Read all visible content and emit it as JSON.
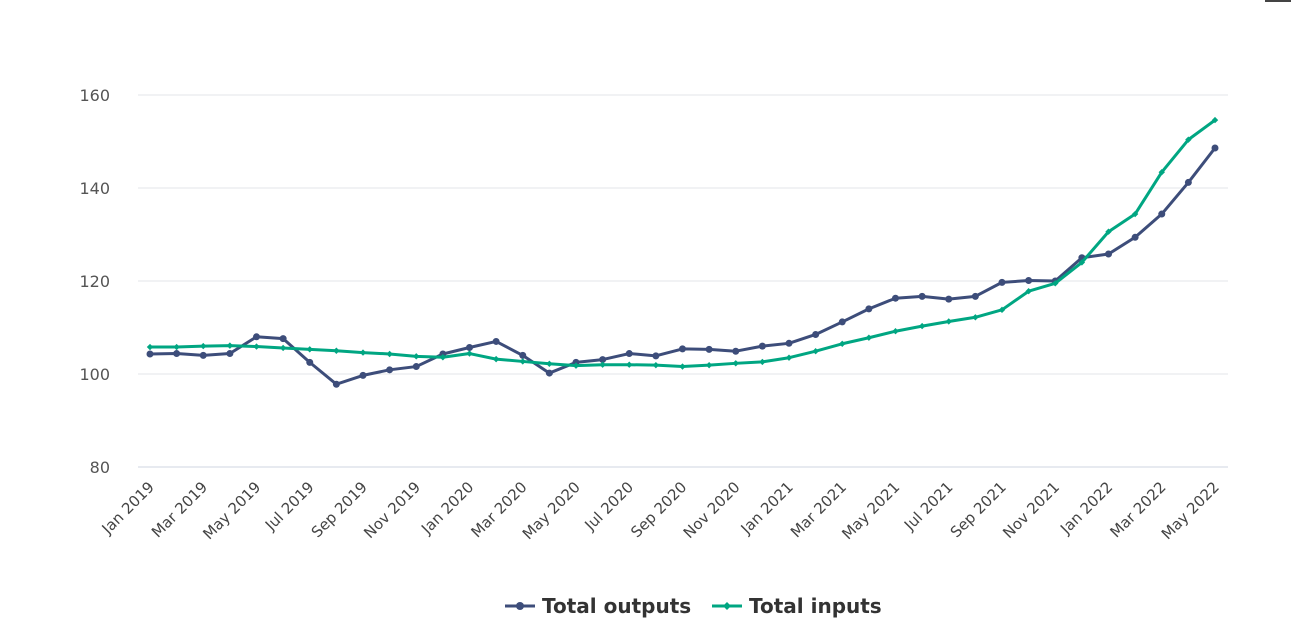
{
  "colors": {
    "outputs": "#3d4d7a",
    "inputs": "#00a682",
    "grid": "#e3e6ea",
    "axis": "#cfd6e0"
  },
  "chart_data": {
    "type": "line",
    "title": "",
    "xlabel": "",
    "ylabel": "",
    "ylim": [
      80,
      160
    ],
    "yticks": [
      80,
      100,
      120,
      140,
      160
    ],
    "grid": true,
    "legend_position": "bottom-center",
    "x": [
      "Jan 2019",
      "Feb 2019",
      "Mar 2019",
      "Apr 2019",
      "May 2019",
      "Jun 2019",
      "Jul 2019",
      "Aug 2019",
      "Sep 2019",
      "Oct 2019",
      "Nov 2019",
      "Dec 2019",
      "Jan 2020",
      "Feb 2020",
      "Mar 2020",
      "Apr 2020",
      "May 2020",
      "Jun 2020",
      "Jul 2020",
      "Aug 2020",
      "Sep 2020",
      "Oct 2020",
      "Nov 2020",
      "Dec 2020",
      "Jan 2021",
      "Feb 2021",
      "Mar 2021",
      "Apr 2021",
      "May 2021",
      "Jun 2021",
      "Jul 2021",
      "Aug 2021",
      "Sep 2021",
      "Oct 2021",
      "Nov 2021",
      "Dec 2021",
      "Jan 2022",
      "Feb 2022",
      "Mar 2022",
      "Apr 2022",
      "May 2022"
    ],
    "x_tick_labels": [
      "Jan 2019",
      "Mar 2019",
      "May 2019",
      "Jul 2019",
      "Sep 2019",
      "Nov 2019",
      "Jan 2020",
      "Mar 2020",
      "May 2020",
      "Jul 2020",
      "Sep 2020",
      "Nov 2020",
      "Jan 2021",
      "Mar 2021",
      "May 2021",
      "Jul 2021",
      "Sep 2021",
      "Nov 2021",
      "Jan 2022",
      "Mar 2022",
      "May 2022"
    ],
    "series": [
      {
        "name": "Total outputs",
        "color": "#3d4d7a",
        "marker": "circle",
        "values": [
          104.3,
          104.4,
          104.0,
          104.4,
          108.0,
          107.6,
          102.5,
          97.8,
          99.7,
          100.9,
          101.6,
          104.3,
          105.7,
          107.0,
          104.0,
          100.2,
          102.5,
          103.1,
          104.4,
          103.9,
          105.4,
          105.3,
          104.9,
          106.0,
          106.6,
          108.5,
          111.2,
          114.0,
          116.3,
          116.7,
          116.1,
          116.7,
          119.7,
          120.1,
          120.0,
          125.0,
          125.8,
          129.4,
          134.4,
          141.2,
          148.6
        ]
      },
      {
        "name": "Total inputs",
        "color": "#00a682",
        "marker": "diamond",
        "values": [
          105.8,
          105.8,
          106.0,
          106.1,
          105.9,
          105.6,
          105.3,
          105.0,
          104.6,
          104.3,
          103.8,
          103.6,
          104.4,
          103.2,
          102.7,
          102.2,
          101.8,
          102.0,
          102.0,
          101.9,
          101.6,
          101.9,
          102.3,
          102.6,
          103.5,
          104.9,
          106.5,
          107.8,
          109.2,
          110.3,
          111.3,
          112.2,
          113.8,
          117.8,
          119.5,
          124.0,
          130.6,
          134.4,
          143.4,
          150.4,
          154.6
        ]
      }
    ]
  }
}
